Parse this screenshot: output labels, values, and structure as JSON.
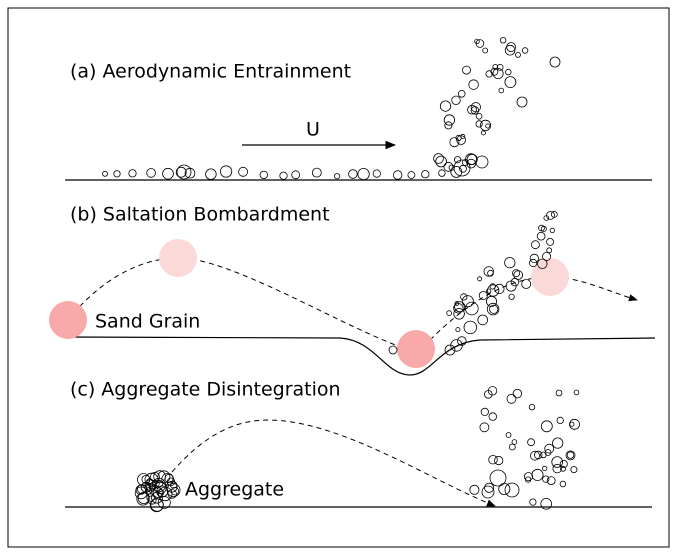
{
  "panels": [
    {
      "title": "(a) Aerodynamic Entrainment",
      "flow_label": "U"
    },
    {
      "title": "(b) Saltation Bombardment",
      "grain_label": "Sand Grain"
    },
    {
      "title": "(c) Aggregate Disintegration",
      "aggregate_label": "Aggregate"
    }
  ]
}
